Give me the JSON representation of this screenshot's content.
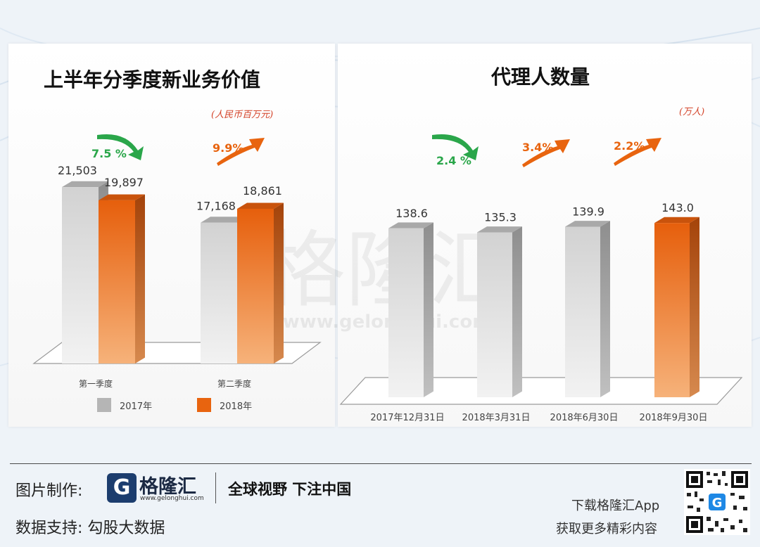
{
  "chart_data": [
    {
      "type": "bar",
      "title": "上半年分季度新业务价值",
      "unit": "(人民币百万元)",
      "categories": [
        "第一季度",
        "第二季度"
      ],
      "series": [
        {
          "name": "2017年",
          "values": [
            21503,
            17168
          ],
          "labels": [
            "21,503",
            "17,168"
          ],
          "color": "#c4c4c4"
        },
        {
          "name": "2018年",
          "values": [
            19897,
            18861
          ],
          "labels": [
            "19,897",
            "18,861"
          ],
          "color": "#e8640f"
        }
      ],
      "annotations": [
        {
          "text": "7.5 %",
          "direction": "down",
          "color": "#2aa64a"
        },
        {
          "text": "9.9%",
          "direction": "up",
          "color": "#e8640f"
        }
      ],
      "legend_placement": "bottom",
      "grid": false
    },
    {
      "type": "bar",
      "title": "代理人数量",
      "unit": "(万人)",
      "categories": [
        "2017年12月31日",
        "2018年3月31日",
        "2018年6月30日",
        "2018年9月30日"
      ],
      "values": [
        138.6,
        135.3,
        139.9,
        143.0
      ],
      "labels": [
        "138.6",
        "135.3",
        "139.9",
        "143.0"
      ],
      "colors": [
        "#c4c4c4",
        "#c4c4c4",
        "#c4c4c4",
        "#e8640f"
      ],
      "annotations": [
        {
          "text": "2.4 %",
          "direction": "down",
          "color": "#2aa64a"
        },
        {
          "text": "3.4%",
          "direction": "up",
          "color": "#e8640f"
        },
        {
          "text": "2.2%",
          "direction": "up",
          "color": "#e8640f"
        }
      ],
      "grid": false
    }
  ],
  "watermark": {
    "text": "格隆汇",
    "url": "www.gelonghui.com"
  },
  "footer": {
    "credit_label": "图片制作:",
    "logo_letter": "G",
    "logo_name": "格隆汇",
    "logo_url": "www.gelonghui.com",
    "slogan": "全球视野 下注中国",
    "data_label": "数据支持:  勾股大数据",
    "download_line1": "下载格隆汇App",
    "download_line2": "获取更多精彩内容",
    "qr_badge": "G"
  }
}
